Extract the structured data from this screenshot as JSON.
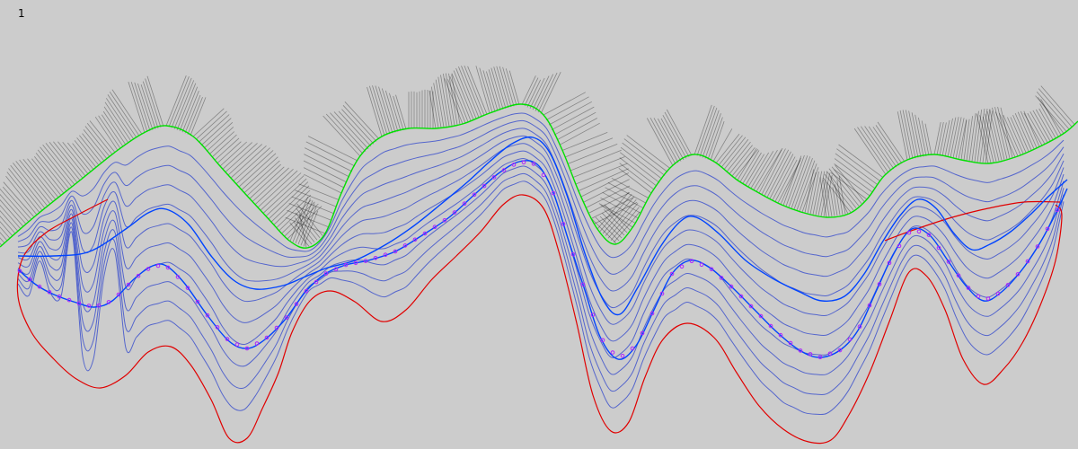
{
  "frame_label": "1",
  "colors": {
    "background": "#cccccc",
    "guide_curve": "#00e000",
    "boundary_curve": "#e00000",
    "highlight_curve": "#0044ff",
    "offset_curves": "#5566cc",
    "sample_markers": "#b020ff",
    "normal_lines": "#000000"
  },
  "icons": {
    "sample_marker": "small-open-circle"
  }
}
